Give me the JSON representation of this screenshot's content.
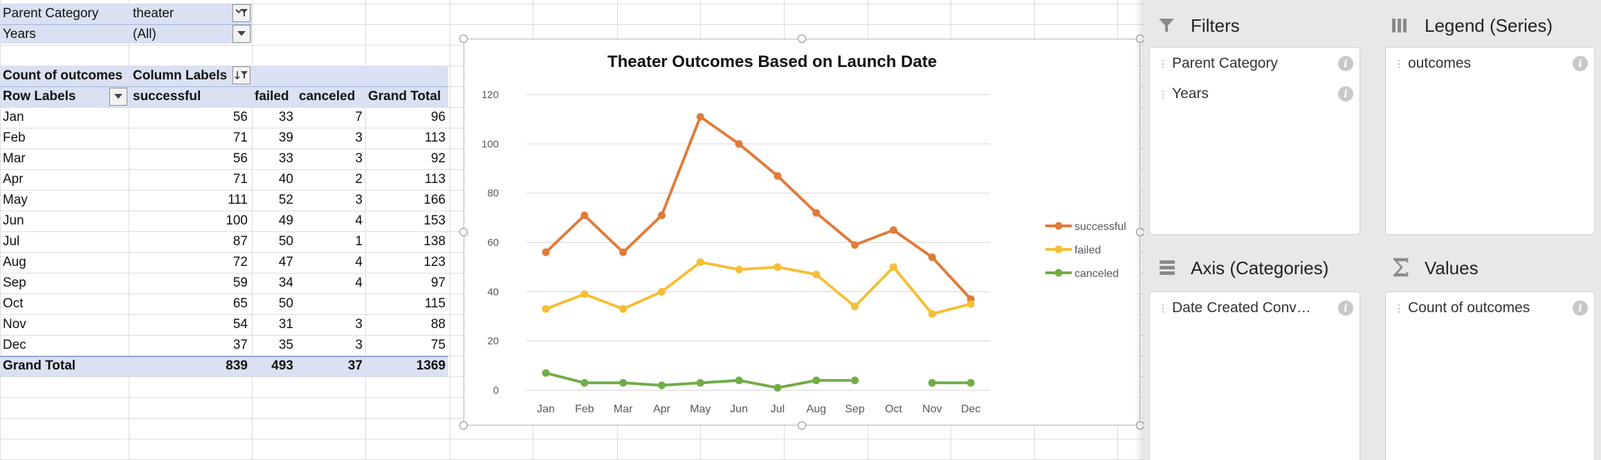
{
  "filters": [
    {
      "label": "Parent Category",
      "value": "theater"
    },
    {
      "label": "Years",
      "value": "(All)"
    }
  ],
  "pivot": {
    "value_field": "Count of outcomes",
    "column_labels": "Column Labels",
    "row_labels": "Row Labels",
    "columns": [
      "successful",
      "failed",
      "canceled",
      "Grand Total"
    ],
    "rows": [
      {
        "label": "Jan",
        "successful": "56",
        "failed": "33",
        "canceled": "7",
        "total": "96"
      },
      {
        "label": "Feb",
        "successful": "71",
        "failed": "39",
        "canceled": "3",
        "total": "113"
      },
      {
        "label": "Mar",
        "successful": "56",
        "failed": "33",
        "canceled": "3",
        "total": "92"
      },
      {
        "label": "Apr",
        "successful": "71",
        "failed": "40",
        "canceled": "2",
        "total": "113"
      },
      {
        "label": "May",
        "successful": "111",
        "failed": "52",
        "canceled": "3",
        "total": "166"
      },
      {
        "label": "Jun",
        "successful": "100",
        "failed": "49",
        "canceled": "4",
        "total": "153"
      },
      {
        "label": "Jul",
        "successful": "87",
        "failed": "50",
        "canceled": "1",
        "total": "138"
      },
      {
        "label": "Aug",
        "successful": "72",
        "failed": "47",
        "canceled": "4",
        "total": "123"
      },
      {
        "label": "Sep",
        "successful": "59",
        "failed": "34",
        "canceled": "4",
        "total": "97"
      },
      {
        "label": "Oct",
        "successful": "65",
        "failed": "50",
        "canceled": "",
        "total": "115"
      },
      {
        "label": "Nov",
        "successful": "54",
        "failed": "31",
        "canceled": "3",
        "total": "88"
      },
      {
        "label": "Dec",
        "successful": "37",
        "failed": "35",
        "canceled": "3",
        "total": "75"
      }
    ],
    "grand_total": {
      "label": "Grand Total",
      "successful": "839",
      "failed": "493",
      "canceled": "37",
      "total": "1369"
    }
  },
  "chart_data": {
    "type": "line",
    "title": "Theater Outcomes Based on Launch Date",
    "categories": [
      "Jan",
      "Feb",
      "Mar",
      "Apr",
      "May",
      "Jun",
      "Jul",
      "Aug",
      "Sep",
      "Oct",
      "Nov",
      "Dec"
    ],
    "series": [
      {
        "name": "successful",
        "color": "#e07b39",
        "values": [
          56,
          71,
          56,
          71,
          111,
          100,
          87,
          72,
          59,
          65,
          54,
          37
        ]
      },
      {
        "name": "failed",
        "color": "#f6be35",
        "values": [
          33,
          39,
          33,
          40,
          52,
          49,
          50,
          47,
          34,
          50,
          31,
          35
        ]
      },
      {
        "name": "canceled",
        "color": "#70ad47",
        "values": [
          7,
          3,
          3,
          2,
          3,
          4,
          1,
          4,
          4,
          null,
          3,
          3
        ]
      }
    ],
    "ylim": [
      0,
      120
    ],
    "yticks": [
      0,
      20,
      40,
      60,
      80,
      100,
      120
    ],
    "grid": true,
    "legend": "right"
  },
  "panel": {
    "filters_title": "Filters",
    "legend_title": "Legend (Series)",
    "axis_title": "Axis (Categories)",
    "values_title": "Values",
    "filter_fields": [
      "Parent Category",
      "Years"
    ],
    "legend_fields": [
      "outcomes"
    ],
    "axis_fields": [
      "Date Created Conv…"
    ],
    "value_fields": [
      "Count of outcomes"
    ],
    "info_glyph": "i"
  }
}
